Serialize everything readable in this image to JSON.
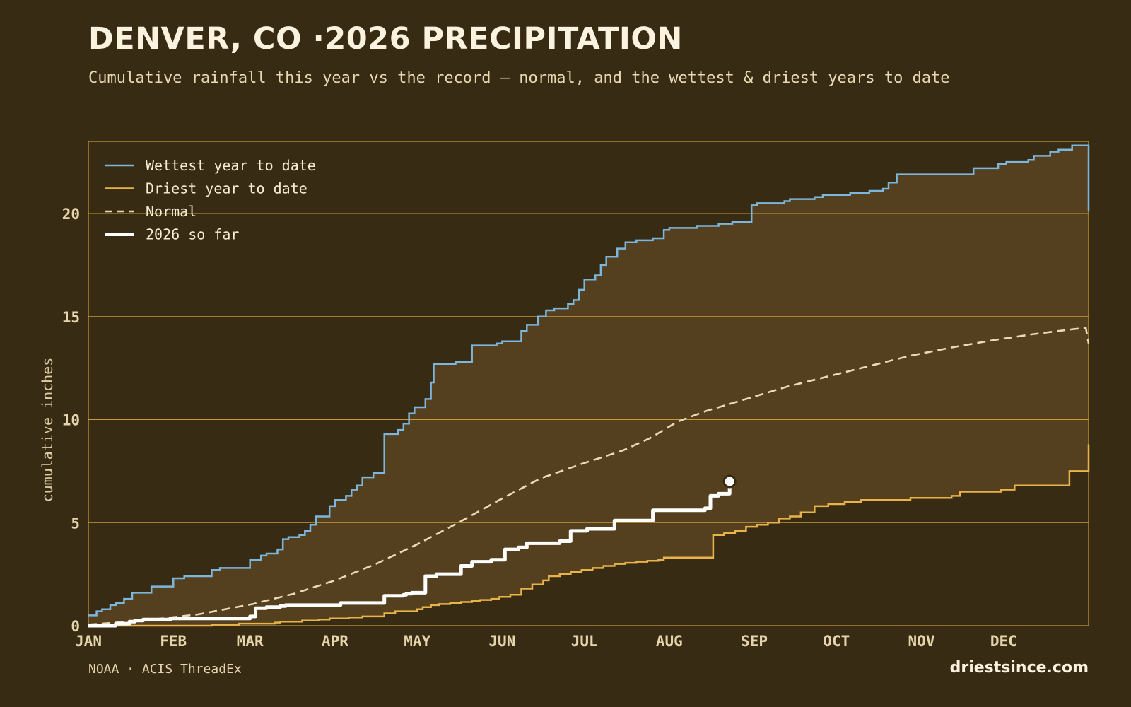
{
  "title": "DENVER, CO ·2026 PRECIPITATION",
  "subtitle": "Cumulative rainfall this year vs the record — normal, and the wettest & driest years to date",
  "source": "NOAA · ACIS ThreadEx",
  "brand": "driestsince.com",
  "colors": {
    "background": "#382b13",
    "band": "#543f1e",
    "grid": "#c79a3a",
    "wettest": "#7cb6dc",
    "driest": "#e8b44a",
    "normal": "#eadbb7",
    "current": "#ffffff"
  },
  "chart_data": {
    "type": "line",
    "ylabel": "cumulative inches",
    "xlabel": "",
    "xlim": [
      0,
      365
    ],
    "ylim": [
      0,
      23.5
    ],
    "month_ticks": [
      {
        "label": "JAN",
        "day": 0
      },
      {
        "label": "FEB",
        "day": 31
      },
      {
        "label": "MAR",
        "day": 59
      },
      {
        "label": "APR",
        "day": 90
      },
      {
        "label": "MAY",
        "day": 120
      },
      {
        "label": "JUN",
        "day": 151
      },
      {
        "label": "JUL",
        "day": 181
      },
      {
        "label": "AUG",
        "day": 212
      },
      {
        "label": "SEP",
        "day": 243
      },
      {
        "label": "OCT",
        "day": 273
      },
      {
        "label": "NOV",
        "day": 304
      },
      {
        "label": "DEC",
        "day": 334
      }
    ],
    "y_ticks": [
      0,
      5,
      10,
      15,
      20
    ],
    "legend_position": "top-left",
    "grid": "horizontal",
    "series": [
      {
        "name": "Wettest year to date",
        "style": "solid",
        "x": [
          0,
          3,
          5,
          8,
          10,
          13,
          16,
          18,
          23,
          27,
          31,
          35,
          45,
          48,
          59,
          63,
          65,
          69,
          71,
          73,
          77,
          79,
          81,
          83,
          85,
          88,
          90,
          94,
          96,
          98,
          100,
          104,
          108,
          111,
          113,
          115,
          117,
          119,
          121,
          123,
          125,
          126,
          128,
          132,
          134,
          140,
          149,
          151,
          158,
          160,
          162,
          164,
          167,
          170,
          173,
          175,
          177,
          179,
          181,
          185,
          187,
          189,
          193,
          196,
          198,
          200,
          203,
          206,
          210,
          212,
          219,
          222,
          224,
          230,
          235,
          242,
          244,
          254,
          256,
          260,
          265,
          268,
          275,
          278,
          282,
          285,
          290,
          292,
          295,
          302,
          304,
          320,
          323,
          330,
          332,
          335,
          343,
          345,
          351,
          354,
          359,
          363,
          365
        ],
        "y": [
          0.5,
          0.7,
          0.8,
          1.0,
          1.1,
          1.3,
          1.6,
          1.6,
          1.9,
          1.9,
          2.3,
          2.4,
          2.7,
          2.8,
          3.2,
          3.4,
          3.5,
          3.7,
          4.2,
          4.3,
          4.4,
          4.6,
          4.9,
          5.3,
          5.3,
          5.8,
          6.1,
          6.3,
          6.6,
          6.8,
          7.2,
          7.4,
          9.3,
          9.3,
          9.5,
          9.8,
          10.3,
          10.6,
          10.6,
          11.0,
          11.8,
          12.7,
          12.7,
          12.7,
          12.8,
          13.6,
          13.7,
          13.8,
          14.3,
          14.6,
          14.6,
          15.0,
          15.3,
          15.4,
          15.4,
          15.6,
          15.8,
          16.3,
          16.8,
          17.0,
          17.5,
          17.9,
          18.3,
          18.6,
          18.6,
          18.7,
          18.7,
          18.8,
          19.2,
          19.3,
          19.3,
          19.4,
          19.4,
          19.5,
          19.6,
          20.4,
          20.5,
          20.6,
          20.7,
          20.7,
          20.8,
          20.9,
          20.9,
          21.0,
          21.0,
          21.1,
          21.2,
          21.5,
          21.9,
          21.9,
          21.9,
          21.9,
          22.2,
          22.2,
          22.4,
          22.5,
          22.6,
          22.8,
          23.0,
          23.1,
          23.3,
          23.3,
          20.1
        ]
      },
      {
        "name": "Driest year to date",
        "style": "solid",
        "x": [
          0,
          18,
          30,
          45,
          55,
          59,
          68,
          70,
          78,
          84,
          88,
          95,
          100,
          108,
          112,
          120,
          122,
          125,
          128,
          132,
          136,
          140,
          143,
          147,
          150,
          154,
          158,
          162,
          166,
          168,
          172,
          176,
          180,
          184,
          188,
          192,
          196,
          200,
          204,
          208,
          210,
          213,
          216,
          220,
          224,
          228,
          232,
          236,
          240,
          244,
          248,
          252,
          256,
          260,
          265,
          270,
          276,
          282,
          290,
          295,
          300,
          305,
          315,
          318,
          325,
          333,
          338,
          345,
          355,
          358,
          363,
          365
        ],
        "y": [
          0,
          0,
          0,
          0.05,
          0.1,
          0.1,
          0.15,
          0.2,
          0.25,
          0.3,
          0.35,
          0.4,
          0.45,
          0.6,
          0.7,
          0.8,
          0.9,
          1.0,
          1.05,
          1.1,
          1.15,
          1.2,
          1.25,
          1.3,
          1.4,
          1.5,
          1.8,
          2.0,
          2.2,
          2.4,
          2.5,
          2.6,
          2.7,
          2.8,
          2.9,
          3.0,
          3.05,
          3.1,
          3.15,
          3.2,
          3.3,
          3.3,
          3.3,
          3.3,
          3.3,
          4.4,
          4.5,
          4.6,
          4.8,
          4.9,
          5.0,
          5.2,
          5.3,
          5.5,
          5.8,
          5.9,
          6.0,
          6.1,
          6.1,
          6.1,
          6.2,
          6.2,
          6.3,
          6.5,
          6.5,
          6.6,
          6.8,
          6.8,
          6.8,
          7.5,
          7.5,
          8.8
        ]
      },
      {
        "name": "Normal",
        "style": "dashed",
        "x": [
          0,
          20,
          40,
          60,
          75,
          90,
          105,
          120,
          135,
          150,
          165,
          180,
          195,
          205,
          215,
          225,
          240,
          255,
          270,
          285,
          300,
          315,
          330,
          345,
          360,
          364,
          365
        ],
        "y": [
          0.05,
          0.25,
          0.55,
          1.05,
          1.55,
          2.2,
          3.0,
          3.95,
          5.0,
          6.1,
          7.15,
          7.85,
          8.5,
          9.1,
          9.9,
          10.4,
          11.0,
          11.6,
          12.1,
          12.6,
          13.1,
          13.5,
          13.85,
          14.15,
          14.4,
          14.45,
          13.7
        ]
      },
      {
        "name": "2026 so far",
        "style": "bold",
        "x": [
          0,
          5,
          10,
          15,
          17,
          20,
          25,
          30,
          40,
          50,
          59,
          61,
          65,
          70,
          72,
          80,
          90,
          92,
          100,
          105,
          108,
          115,
          116,
          118,
          121,
          123,
          127,
          129,
          133,
          136,
          140,
          144,
          147,
          150,
          152,
          157,
          160,
          165,
          170,
          172,
          176,
          182,
          188,
          192,
          196,
          201,
          206,
          212,
          218,
          224,
          225,
          227,
          230,
          232,
          234
        ],
        "y": [
          0,
          0,
          0.1,
          0.2,
          0.25,
          0.3,
          0.3,
          0.35,
          0.35,
          0.35,
          0.45,
          0.85,
          0.9,
          0.95,
          1.0,
          1.0,
          1.0,
          1.1,
          1.1,
          1.1,
          1.45,
          1.5,
          1.55,
          1.6,
          1.6,
          2.4,
          2.5,
          2.5,
          2.5,
          2.9,
          3.1,
          3.1,
          3.2,
          3.2,
          3.7,
          3.8,
          4.0,
          4.0,
          4.0,
          4.1,
          4.6,
          4.7,
          4.7,
          5.1,
          5.1,
          5.1,
          5.6,
          5.6,
          5.6,
          5.6,
          5.7,
          6.3,
          6.4,
          6.4,
          7.0
        ]
      }
    ]
  }
}
